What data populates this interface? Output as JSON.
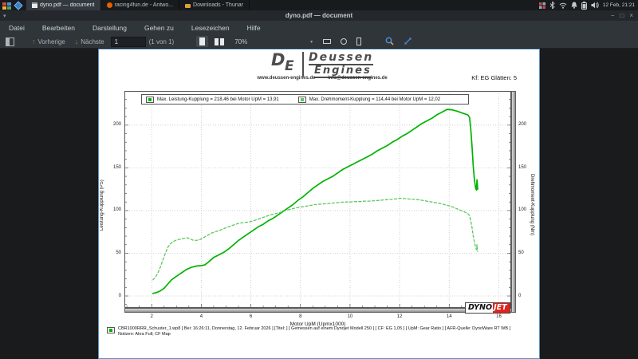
{
  "desktop": {
    "panel": {
      "windows": [
        {
          "label": "dyno.pdf — document",
          "active": true,
          "icon": "window-icon"
        },
        {
          "label": "racing4fun.de - Antwo...",
          "active": false,
          "icon": "firefox-icon"
        },
        {
          "label": "Downloads - Thunar",
          "active": false,
          "icon": "folder-icon"
        }
      ],
      "clock": "12 Feb, 21:21"
    }
  },
  "app": {
    "title": "dyno.pdf — document",
    "window_buttons": {
      "minimize": "−",
      "maximize": "□",
      "close": "×"
    },
    "menus": [
      "Datei",
      "Bearbeiten",
      "Darstellung",
      "Gehen zu",
      "Lesezeichen",
      "Hilfe"
    ],
    "toolbar": {
      "previous": "Vorherige",
      "next": "Nächste",
      "page_value": "1",
      "page_count": "(1 von 1)",
      "zoom_value": "70%",
      "zoom_caret": "▾"
    }
  },
  "doc": {
    "brand": {
      "mono_d": "D",
      "mono_e": "E",
      "name1": "Deussen",
      "name2": "Engines",
      "website": "www.deussen-engines.de",
      "email": "info@deussen-engines.de"
    },
    "kf": "Kf: EG Glätten: 5",
    "dynojet1": "DYNO",
    "dynojet2": "JET",
    "caption": "CBR1000RRR_Schuster_1.wp8 [ Bei: 16:26:11, Donnerstag, 12. Februar 2026 ] [Titel: ] [ Gemessen auf einem Dynojet Modell 250 ] [ CF: EG 1,05 ] [ UpM: Gear Ratio ] [ AFR-Quelle: DynoWare RT WB ] Notizen: Akra Full; CF Map"
  },
  "chart_data": {
    "type": "line",
    "xlabel": "Motor UpM (Upmx1000)",
    "ylabel_left": "Leistung-Kupplung (PS)",
    "ylabel_right": "Drehmoment-Kupplung (Nm)",
    "xlim": [
      0.9,
      16.5
    ],
    "ylim": [
      -14,
      240
    ],
    "xticks": [
      2,
      4,
      6,
      8,
      10,
      12,
      14,
      16
    ],
    "yticks": [
      0,
      50,
      100,
      150,
      200
    ],
    "grid": true,
    "legend_position": "top-inside",
    "series": [
      {
        "name": "Max. Leistung-Kupplung = 218,46 bei Motor UpM = 13,91",
        "axis": "left",
        "style": "solid",
        "color": "#00b300",
        "max_value": 218.46,
        "max_at": 13.91,
        "points": [
          [
            2.05,
            3
          ],
          [
            2.2,
            4
          ],
          [
            2.35,
            6
          ],
          [
            2.5,
            9
          ],
          [
            2.65,
            14
          ],
          [
            2.8,
            19
          ],
          [
            2.95,
            22
          ],
          [
            3.1,
            25
          ],
          [
            3.25,
            28
          ],
          [
            3.4,
            31
          ],
          [
            3.6,
            33.5
          ],
          [
            3.8,
            35
          ],
          [
            4.0,
            35.5
          ],
          [
            4.15,
            36.5
          ],
          [
            4.3,
            40
          ],
          [
            4.5,
            45
          ],
          [
            4.7,
            48
          ],
          [
            4.9,
            51
          ],
          [
            5.1,
            55
          ],
          [
            5.3,
            60
          ],
          [
            5.5,
            65
          ],
          [
            5.7,
            69
          ],
          [
            5.9,
            73
          ],
          [
            6.1,
            77
          ],
          [
            6.3,
            81
          ],
          [
            6.5,
            84
          ],
          [
            6.7,
            88
          ],
          [
            6.9,
            91
          ],
          [
            7.1,
            95
          ],
          [
            7.3,
            99
          ],
          [
            7.5,
            103
          ],
          [
            7.7,
            107
          ],
          [
            7.9,
            112
          ],
          [
            8.1,
            116
          ],
          [
            8.3,
            121
          ],
          [
            8.5,
            126
          ],
          [
            8.7,
            130
          ],
          [
            8.9,
            134
          ],
          [
            9.1,
            137
          ],
          [
            9.3,
            140
          ],
          [
            9.5,
            144
          ],
          [
            9.7,
            148
          ],
          [
            9.9,
            151
          ],
          [
            10.1,
            154
          ],
          [
            10.3,
            157
          ],
          [
            10.5,
            160
          ],
          [
            10.7,
            163
          ],
          [
            10.9,
            166
          ],
          [
            11.1,
            170
          ],
          [
            11.3,
            173
          ],
          [
            11.5,
            176
          ],
          [
            11.7,
            180
          ],
          [
            11.9,
            183
          ],
          [
            12.1,
            187
          ],
          [
            12.3,
            190
          ],
          [
            12.5,
            194
          ],
          [
            12.7,
            198
          ],
          [
            12.9,
            202
          ],
          [
            13.1,
            205
          ],
          [
            13.3,
            208
          ],
          [
            13.5,
            212
          ],
          [
            13.7,
            215
          ],
          [
            13.91,
            218.46
          ],
          [
            14.1,
            218
          ],
          [
            14.3,
            216.5
          ],
          [
            14.45,
            215
          ],
          [
            14.6,
            213.5
          ],
          [
            14.75,
            212
          ],
          [
            14.82,
            209
          ],
          [
            14.87,
            195
          ],
          [
            14.92,
            175
          ],
          [
            14.97,
            152
          ],
          [
            15.02,
            135
          ],
          [
            15.07,
            126
          ],
          [
            15.1,
            124
          ],
          [
            15.12,
            136
          ],
          [
            15.14,
            128
          ],
          [
            15.15,
            125
          ]
        ]
      },
      {
        "name": "Max. Drehmoment-Kupplung = 114,44 bei Motor UpM = 12,02",
        "axis": "right",
        "style": "dashed",
        "color": "#5dc85d",
        "max_value": 114.44,
        "max_at": 12.02,
        "points": [
          [
            2.05,
            19
          ],
          [
            2.15,
            22
          ],
          [
            2.25,
            27
          ],
          [
            2.35,
            34
          ],
          [
            2.45,
            42
          ],
          [
            2.55,
            50
          ],
          [
            2.65,
            57
          ],
          [
            2.75,
            61
          ],
          [
            2.85,
            63.5
          ],
          [
            3.0,
            65.5
          ],
          [
            3.15,
            66.5
          ],
          [
            3.3,
            67.5
          ],
          [
            3.45,
            68
          ],
          [
            3.55,
            67
          ],
          [
            3.65,
            65.5
          ],
          [
            3.8,
            65
          ],
          [
            3.95,
            66
          ],
          [
            4.1,
            68.5
          ],
          [
            4.25,
            71
          ],
          [
            4.4,
            73.5
          ],
          [
            4.55,
            75
          ],
          [
            4.7,
            76.5
          ],
          [
            4.85,
            78
          ],
          [
            5.0,
            80
          ],
          [
            5.15,
            81.5
          ],
          [
            5.3,
            83
          ],
          [
            5.45,
            84.5
          ],
          [
            5.6,
            85.5
          ],
          [
            5.75,
            86
          ],
          [
            5.9,
            86.5
          ],
          [
            6.05,
            87.5
          ],
          [
            6.2,
            89
          ],
          [
            6.4,
            91
          ],
          [
            6.6,
            93
          ],
          [
            6.8,
            95
          ],
          [
            7.0,
            96.5
          ],
          [
            7.2,
            98
          ],
          [
            7.4,
            100
          ],
          [
            7.6,
            101.5
          ],
          [
            7.8,
            103
          ],
          [
            8.0,
            104
          ],
          [
            8.2,
            105
          ],
          [
            8.4,
            106
          ],
          [
            8.6,
            107
          ],
          [
            8.8,
            107.5
          ],
          [
            9.0,
            108
          ],
          [
            9.2,
            108.5
          ],
          [
            9.4,
            109
          ],
          [
            9.6,
            109.5
          ],
          [
            9.8,
            110
          ],
          [
            10.0,
            110
          ],
          [
            10.2,
            110.5
          ],
          [
            10.4,
            110.5
          ],
          [
            10.6,
            111
          ],
          [
            10.8,
            111
          ],
          [
            11.0,
            111.5
          ],
          [
            11.2,
            112
          ],
          [
            11.4,
            112.5
          ],
          [
            11.6,
            113
          ],
          [
            11.8,
            113.5
          ],
          [
            12.02,
            114.44
          ],
          [
            12.2,
            114
          ],
          [
            12.4,
            113.5
          ],
          [
            12.6,
            113
          ],
          [
            12.8,
            112.5
          ],
          [
            13.0,
            111.5
          ],
          [
            13.2,
            110.5
          ],
          [
            13.4,
            109.5
          ],
          [
            13.6,
            108.5
          ],
          [
            13.8,
            107
          ],
          [
            14.0,
            105.5
          ],
          [
            14.2,
            103.5
          ],
          [
            14.4,
            101
          ],
          [
            14.6,
            98.5
          ],
          [
            14.75,
            96.5
          ],
          [
            14.82,
            94
          ],
          [
            14.87,
            88
          ],
          [
            14.92,
            80
          ],
          [
            14.97,
            70
          ],
          [
            15.02,
            62
          ],
          [
            15.07,
            57
          ],
          [
            15.1,
            54
          ],
          [
            15.12,
            60
          ],
          [
            15.14,
            53
          ],
          [
            15.15,
            52
          ]
        ]
      }
    ]
  }
}
